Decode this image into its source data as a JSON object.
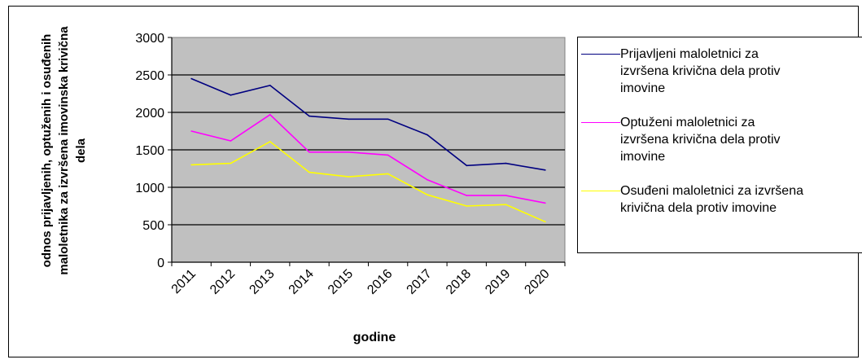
{
  "chart_data": {
    "type": "line",
    "title": "",
    "xlabel": "godine",
    "ylabel": "odnos prijavljenih, optuženih i osuđenih maloletnika za izvršena imovinska krivična dela",
    "categories": [
      "2011",
      "2012",
      "2013",
      "2014",
      "2015",
      "2016",
      "2017",
      "2018",
      "2019",
      "2020"
    ],
    "ylim": [
      0,
      3000
    ],
    "yticks": [
      0,
      500,
      1000,
      1500,
      2000,
      2500,
      3000
    ],
    "grid": true,
    "plot_background": "#c0c0c0",
    "legend_position": "right",
    "series": [
      {
        "name": "Prijavljeni maloletnici za izvršena krivična dela protiv imovine",
        "color": "#000080",
        "values": [
          2450,
          2230,
          2360,
          1950,
          1910,
          1910,
          1700,
          1290,
          1320,
          1230
        ]
      },
      {
        "name": "Optuženi maloletnici za izvršena krivična dela protiv imovine",
        "color": "#ff00ff",
        "values": [
          1750,
          1620,
          1970,
          1470,
          1470,
          1430,
          1100,
          890,
          890,
          790
        ]
      },
      {
        "name": "Osuđeni maloletnici za izvršena krivična dela protiv imovine",
        "color": "#ffff00",
        "values": [
          1300,
          1320,
          1610,
          1200,
          1140,
          1180,
          900,
          750,
          770,
          540
        ]
      }
    ]
  },
  "legend_text": [
    "Prijavljeni maloletnici za\nizvršena krivična dela protiv\nimovine",
    "Optuženi maloletnici za\nizvršena krivična dela protiv\nimovine",
    "Osuđeni maloletnici za izvršena\nkrivična dela protiv imovine"
  ]
}
